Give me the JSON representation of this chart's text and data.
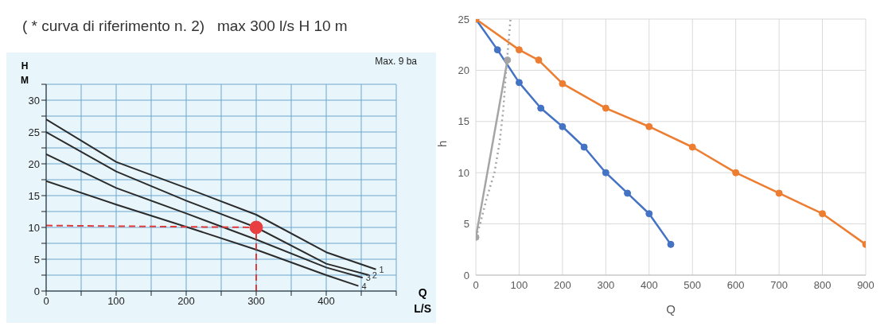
{
  "chart_data": [
    {
      "type": "line",
      "title": "( * curva di riferimento n. 2)   max 300 l/s H 10 m",
      "xlabel": "Q L/S",
      "ylabel": "H M",
      "xlim": [
        0,
        500
      ],
      "ylim": [
        0,
        32.5
      ],
      "xticks": [
        0,
        {
          "value": 50,
          "label": null
        },
        100,
        {
          "value": 150,
          "label": null
        },
        200,
        {
          "value": 250,
          "label": null
        },
        300,
        {
          "value": 350,
          "label": null
        },
        400,
        {
          "value": 450,
          "label": null
        },
        {
          "value": 500,
          "label": null
        }
      ],
      "yticks": [
        0,
        {
          "value": 2.5,
          "label": null
        },
        5,
        {
          "value": 7.5,
          "label": null
        },
        10,
        {
          "value": 12.5,
          "label": null
        },
        15,
        {
          "value": 17.5,
          "label": null
        },
        20,
        {
          "value": 22.5,
          "label": null
        },
        25,
        {
          "value": 27.5,
          "label": null
        },
        30,
        {
          "value": 32.5,
          "label": null
        }
      ],
      "grid": true,
      "marker": "none",
      "series": [
        {
          "color": "#2b2b2b",
          "x": [
            0,
            100,
            200,
            300,
            400,
            471
          ],
          "values": [
            27,
            20.3,
            16.2,
            12,
            6.1,
            3.4
          ]
        },
        {
          "color": "#2b2b2b",
          "x": [
            0,
            100,
            200,
            300,
            400,
            461
          ],
          "values": [
            25,
            18.8,
            14.2,
            10,
            4.3,
            2.5
          ]
        },
        {
          "color": "#2b2b2b",
          "x": [
            0,
            100,
            200,
            300,
            400,
            452
          ],
          "values": [
            21.5,
            16.2,
            12.2,
            8.1,
            3.7,
            2.1
          ]
        },
        {
          "color": "#2b2b2b",
          "x": [
            0,
            100,
            200,
            300,
            400,
            446
          ],
          "values": [
            17.3,
            13.6,
            10.1,
            6.5,
            2.5,
            0.8
          ]
        },
        {
          "color": "#e03c3c",
          "line_style": "dashed",
          "x": [
            0,
            300
          ],
          "values": [
            10.3,
            10
          ]
        },
        {
          "color": "#e03c3c",
          "line_style": "dashed",
          "x": [
            300,
            300
          ],
          "values": [
            0,
            10
          ]
        },
        {
          "type": "scatter",
          "color": "#e84040",
          "marker": "circle",
          "x": [
            300
          ],
          "values": [
            10
          ]
        }
      ],
      "annotations": [
        {
          "text": "1",
          "x": 471,
          "y": 3.4
        },
        {
          "text": "2",
          "x": 461,
          "y": 2.5
        },
        {
          "text": "3",
          "x": 452,
          "y": 2.1
        },
        {
          "text": "4",
          "x": 446,
          "y": 0.8
        },
        "Max. 9 ba"
      ]
    },
    {
      "type": "line",
      "xlabel": "Q",
      "ylabel": "h",
      "xlim": [
        0,
        900
      ],
      "ylim": [
        0,
        25
      ],
      "xticks": [
        0,
        100,
        200,
        300,
        400,
        500,
        600,
        700,
        800,
        900
      ],
      "yticks": [
        0,
        5,
        10,
        15,
        20,
        25
      ],
      "grid": true,
      "marker": "circle",
      "series": [
        {
          "color": "#4472c4",
          "x": [
            0,
            50,
            100,
            150,
            200,
            250,
            300,
            350,
            400,
            450
          ],
          "values": [
            25,
            22,
            18.8,
            16.3,
            14.5,
            12.5,
            10,
            8,
            6,
            3
          ]
        },
        {
          "color": "#ed7d31",
          "x": [
            0,
            100,
            145,
            200,
            300,
            400,
            500,
            600,
            700,
            800,
            900
          ],
          "values": [
            25,
            22,
            21,
            18.7,
            16.3,
            14.5,
            12.5,
            10,
            8,
            6,
            3
          ]
        },
        {
          "color": "#a5a5a5",
          "x": [
            0,
            73
          ],
          "values": [
            3.7,
            21
          ]
        },
        {
          "color": "#a5a5a5",
          "marker": "none",
          "line_style": "dotted",
          "x": [
            0,
            10,
            25,
            43,
            55,
            63,
            70,
            75,
            80
          ],
          "values": [
            3.7,
            5,
            7.5,
            10,
            13,
            16,
            20,
            22.5,
            25
          ]
        }
      ]
    }
  ]
}
